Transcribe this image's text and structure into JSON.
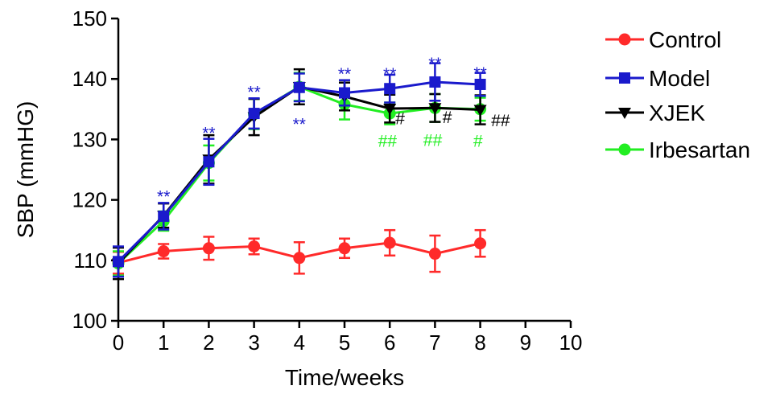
{
  "chart_data": {
    "type": "line",
    "xlabel": "Time/weeks",
    "ylabel": "SBP (mmHG)",
    "xlim": [
      0,
      10
    ],
    "ylim": [
      100,
      150
    ],
    "xticks": [
      0,
      1,
      2,
      3,
      4,
      5,
      6,
      7,
      8,
      9,
      10
    ],
    "yticks": [
      100,
      110,
      120,
      130,
      140,
      150
    ],
    "grid": false,
    "legend_position": "right",
    "series": [
      {
        "name": "Control",
        "color": "#ff2a2a",
        "marker": "circle",
        "x": [
          0,
          1,
          2,
          3,
          4,
          5,
          6,
          7,
          8
        ],
        "y": [
          109.6,
          111.5,
          112.0,
          112.3,
          110.4,
          112.0,
          112.9,
          111.1,
          112.8
        ],
        "err": [
          1.8,
          1.2,
          1.9,
          1.3,
          2.6,
          1.6,
          2.1,
          3.0,
          2.2
        ]
      },
      {
        "name": "Model",
        "color": "#1a1acc",
        "marker": "square",
        "x": [
          0,
          1,
          2,
          3,
          4,
          5,
          6,
          7,
          8
        ],
        "y": [
          109.8,
          117.3,
          126.3,
          134.3,
          138.6,
          137.7,
          138.4,
          139.5,
          139.1
        ],
        "err": [
          2.5,
          2.2,
          3.8,
          2.5,
          2.3,
          2.1,
          2.3,
          3.1,
          1.9
        ]
      },
      {
        "name": "XJEK",
        "color": "#000000",
        "marker": "triangle-down",
        "x": [
          0,
          1,
          2,
          3,
          4,
          5,
          6,
          7,
          8
        ],
        "y": [
          109.5,
          117.4,
          126.7,
          133.7,
          138.7,
          137.1,
          135.1,
          135.2,
          134.9
        ],
        "err": [
          2.6,
          2.0,
          4.0,
          3.0,
          2.9,
          2.3,
          2.3,
          2.3,
          2.4
        ]
      },
      {
        "name": "Irbesartan",
        "color": "#22ee22",
        "marker": "circle",
        "x": [
          0,
          1,
          2,
          3,
          4,
          5,
          6,
          7,
          8
        ],
        "y": [
          109.5,
          116.5,
          126.1,
          134.2,
          138.7,
          135.8,
          134.3,
          135.2,
          135.0
        ],
        "err": [
          2.0,
          1.6,
          2.9,
          2.5,
          2.3,
          2.5,
          1.8,
          2.3,
          1.9
        ]
      }
    ],
    "annotations": [
      {
        "text": "**",
        "x": 1,
        "y": 119.6,
        "color": "#1a1acc"
      },
      {
        "text": "**",
        "x": 2,
        "y": 130.1,
        "color": "#1a1acc"
      },
      {
        "text": "**",
        "x": 3,
        "y": 136.9,
        "color": "#1a1acc"
      },
      {
        "text": "**",
        "x": 4,
        "y": 131.6,
        "color": "#1a1acc"
      },
      {
        "text": "**",
        "x": 5,
        "y": 139.9,
        "color": "#1a1acc"
      },
      {
        "text": "**",
        "x": 6,
        "y": 139.9,
        "color": "#1a1acc"
      },
      {
        "text": "**",
        "x": 7,
        "y": 141.6,
        "color": "#1a1acc"
      },
      {
        "text": "**",
        "x": 8,
        "y": 140.0,
        "color": "#1a1acc"
      },
      {
        "text": "#",
        "x": 6.23,
        "y": 132.5,
        "color": "#000000"
      },
      {
        "text": "#",
        "x": 7.27,
        "y": 132.7,
        "color": "#000000"
      },
      {
        "text": "##",
        "x": 8.45,
        "y": 132.2,
        "color": "#000000"
      },
      {
        "text": "##",
        "x": 5.95,
        "y": 128.8,
        "color": "#22ee22"
      },
      {
        "text": "##",
        "x": 6.95,
        "y": 128.9,
        "color": "#22ee22"
      },
      {
        "text": "#",
        "x": 7.95,
        "y": 128.8,
        "color": "#22ee22"
      }
    ]
  }
}
